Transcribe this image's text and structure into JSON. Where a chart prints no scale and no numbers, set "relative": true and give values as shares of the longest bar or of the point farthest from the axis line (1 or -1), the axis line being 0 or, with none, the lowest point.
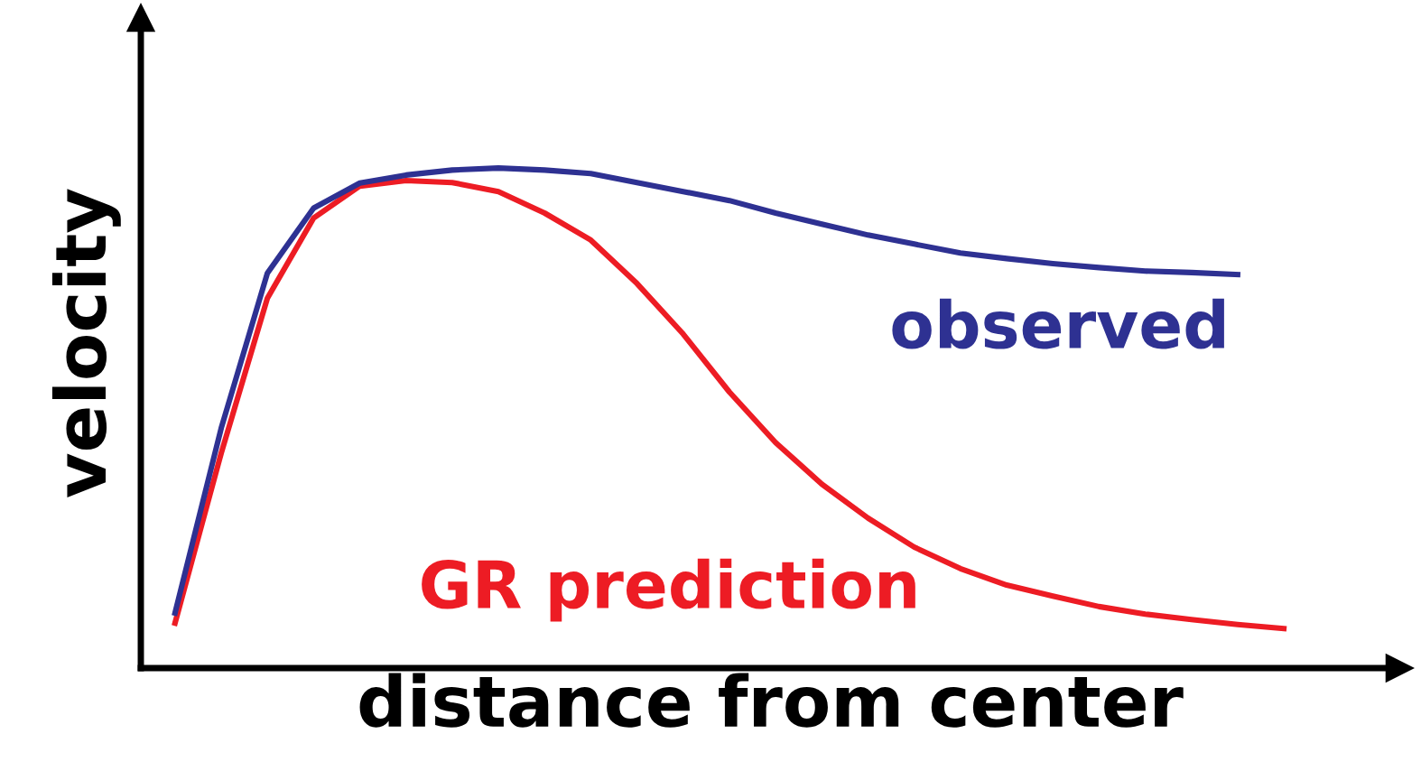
{
  "chart_data": {
    "type": "line",
    "relative": true,
    "xlabel": "distance from center",
    "ylabel": "velocity",
    "legend": false,
    "marker": "none",
    "line_style": "solid",
    "categories": [
      null,
      null,
      null,
      null,
      null,
      null,
      null,
      null,
      null,
      null,
      null,
      null,
      null,
      null,
      null,
      null,
      null,
      null,
      null,
      null,
      null,
      null,
      null,
      null,
      null
    ],
    "series": [
      {
        "name": "observed",
        "color": "#2e3192",
        "values": [
          0.11,
          0.48,
          0.79,
          0.92,
          0.97,
          0.986,
          0.996,
          1,
          0.996,
          0.989,
          0.971,
          0.953,
          0.935,
          0.91,
          0.888,
          0.866,
          0.848,
          0.83,
          0.819,
          0.809,
          0.801,
          0.794,
          0.791,
          0.787,
          null
        ]
      },
      {
        "name": "GR prediction",
        "color": "#ed1c24",
        "values": [
          0.09,
          0.43,
          0.74,
          0.9,
          0.964,
          0.975,
          0.971,
          0.953,
          0.91,
          0.856,
          0.769,
          0.668,
          0.552,
          0.451,
          0.368,
          0.3,
          0.242,
          0.199,
          0.166,
          0.144,
          0.123,
          0.108,
          0.097,
          0.087,
          0.079
        ]
      }
    ]
  }
}
